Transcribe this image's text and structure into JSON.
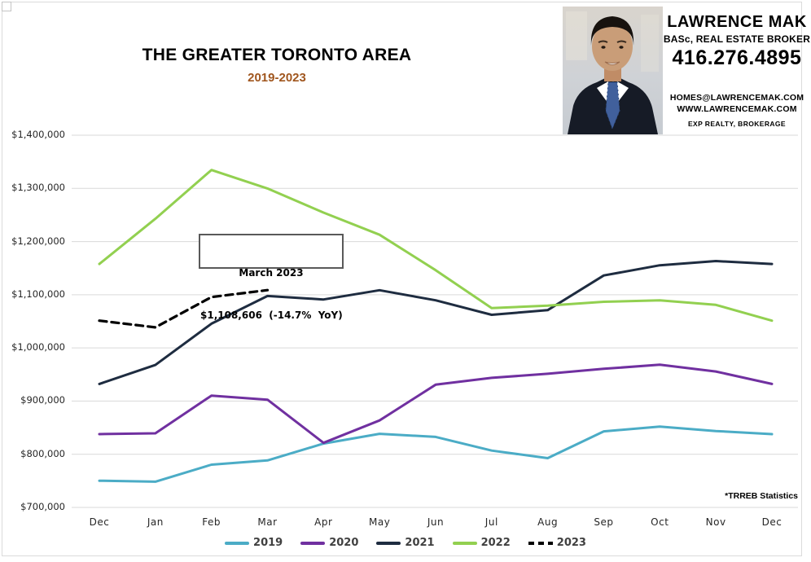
{
  "header": {
    "title": "THE GREATER TORONTO AREA",
    "subtitle": "2019-2023",
    "subtitle_color": "#A0561E",
    "branding": {
      "name": "LAWRENCE MAK",
      "credentials": "BASc, REAL ESTATE BROKER",
      "phone": "416.276.4895",
      "email": "HOMES@LAWRENCEMAK.COM",
      "website": "WWW.LAWRENCEMAK.COM",
      "brokerage": "EXP REALTY, BROKERAGE",
      "photo": "headshot-of-lawrence-mak"
    }
  },
  "annotation": {
    "line1": "March 2023",
    "line2": "$1,108,606  (-14.7%  YoY)"
  },
  "footnote": "*TRREB Statistics",
  "chart_data": {
    "type": "line",
    "title": "THE GREATER TORONTO AREA",
    "subtitle": "2019-2023",
    "categories": [
      "Dec",
      "Jan",
      "Feb",
      "Mar",
      "Apr",
      "May",
      "Jun",
      "Jul",
      "Aug",
      "Sep",
      "Oct",
      "Nov",
      "Dec"
    ],
    "series": [
      {
        "name": "2019",
        "color": "#4BACC6",
        "dashed": false,
        "values": [
          750180,
          748328,
          780397,
          788335,
          820148,
          838540,
          832703,
          806971,
          792611,
          843115,
          852142,
          843637,
          837788
        ]
      },
      {
        "name": "2020",
        "color": "#7030A0",
        "dashed": false,
        "values": [
          837788,
          839363,
          910290,
          902680,
          821392,
          863599,
          930869,
          943710,
          951404,
          960772,
          968318,
          955615,
          932222
        ]
      },
      {
        "name": "2021",
        "color": "#1E2C40",
        "dashed": false,
        "values": [
          932222,
          967885,
          1045488,
          1097565,
          1090992,
          1108453,
          1089536,
          1062256,
          1070911,
          1136280,
          1155345,
          1163323,
          1157849
        ]
      },
      {
        "name": "2022",
        "color": "#92D050",
        "dashed": false,
        "values": [
          1157849,
          1242793,
          1334544,
          1299894,
          1254436,
          1212806,
          1146254,
          1074754,
          1079500,
          1086762,
          1089428,
          1080915,
          1051216
        ]
      },
      {
        "name": "2023",
        "color": "#000000",
        "dashed": true,
        "values": [
          1051216,
          1038668,
          1095617,
          1108606
        ]
      }
    ],
    "ylim": [
      700000,
      1400000
    ],
    "ytick_step": 100000,
    "ytick_format": "$#,##0",
    "grid": true,
    "gridline_color": "#D9D9D9",
    "legend_position": "bottom",
    "annotation": "March 2023 $1,108,606 (-14.7% YoY)",
    "source_note": "*TRREB Statistics"
  }
}
